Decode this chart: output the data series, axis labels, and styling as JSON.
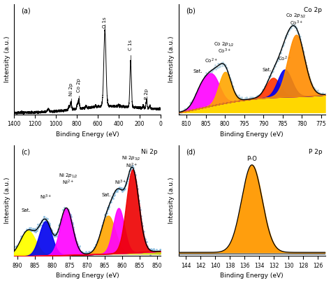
{
  "fig_width": 4.74,
  "fig_height": 4.05,
  "panel_a": {
    "label": "(a)",
    "xlabel": "Binding Energy (eV)",
    "ylabel": "Intensity (a.u.)",
    "xlim": [
      1400,
      0
    ],
    "xticks": [
      1400,
      1200,
      1000,
      800,
      600,
      400,
      200,
      0
    ]
  },
  "panel_b": {
    "label": "(b)",
    "xlabel": "Binding Energy (eV)",
    "ylabel": "Intensity (a.u.)",
    "xlim": [
      812,
      774
    ],
    "xticks": [
      810,
      805,
      800,
      795,
      790,
      785,
      780,
      775
    ],
    "title_ann": "Co 2p"
  },
  "panel_c": {
    "label": "(c)",
    "xlabel": "Binding Energy (eV)",
    "ylabel": "Intensity (a.u.)",
    "xlim": [
      891,
      849
    ],
    "xticks": [
      890,
      885,
      880,
      875,
      870,
      865,
      860,
      855,
      850
    ],
    "title_ann": "Ni 2p"
  },
  "panel_d": {
    "label": "(d)",
    "xlabel": "Binding Energy (eV)",
    "ylabel": "Intensity (a.u.)",
    "xlim": [
      145,
      125
    ],
    "xticks": [
      144,
      142,
      140,
      138,
      136,
      134,
      132,
      130,
      128,
      126
    ],
    "title_ann": "P 2p"
  }
}
